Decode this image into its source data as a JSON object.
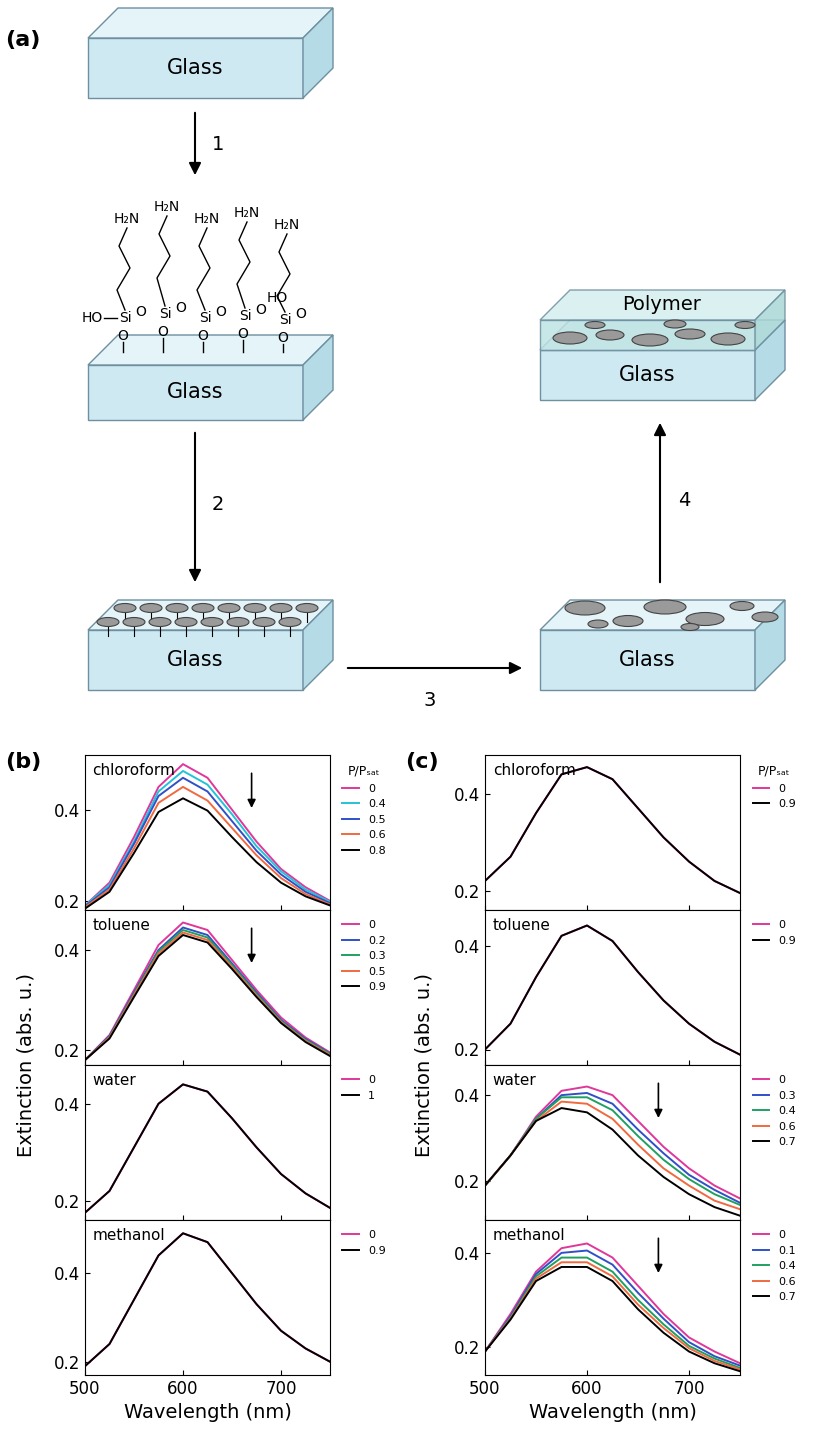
{
  "diagram": {
    "panel_label": "(a)",
    "substrate": "Glass",
    "coating": "Polymer",
    "steps": [
      "1",
      "2",
      "3",
      "4"
    ],
    "molecule": {
      "amines": [
        "H₂N",
        "H₂N",
        "H₂N",
        "H₂N",
        "H₂N"
      ],
      "silicons": [
        "Si",
        "Si",
        "Si",
        "Si",
        "Si"
      ],
      "oxygens": [
        "O",
        "O",
        "O",
        "O",
        "O",
        "O",
        "O",
        "O",
        "O",
        "O"
      ],
      "hydroxyls": [
        "HO",
        "HO"
      ]
    }
  },
  "chart_data": [
    {
      "type": "line",
      "title": "chloroform",
      "panel_label": "(b)",
      "legend_title": "P/Pₛₐₜ",
      "legend": "right",
      "tick_labels": "y",
      "x": [
        500,
        525,
        550,
        575,
        600,
        625,
        650,
        675,
        700,
        725,
        750
      ],
      "xlim": [
        500,
        750
      ],
      "xticks": [
        500,
        600,
        700
      ],
      "ylim": [
        0.18,
        0.52
      ],
      "yticks": [
        0.2,
        0.4
      ],
      "series": [
        {
          "name": "0",
          "color": "#e0379a",
          "values": [
            0.19,
            0.24,
            0.34,
            0.45,
            0.5,
            0.47,
            0.4,
            0.33,
            0.27,
            0.23,
            0.2
          ]
        },
        {
          "name": "0.4",
          "color": "#22c3d6",
          "values": [
            0.19,
            0.235,
            0.33,
            0.44,
            0.485,
            0.455,
            0.39,
            0.32,
            0.265,
            0.225,
            0.198
          ]
        },
        {
          "name": "0.5",
          "color": "#3050c8",
          "values": [
            0.188,
            0.23,
            0.325,
            0.43,
            0.47,
            0.44,
            0.375,
            0.31,
            0.258,
            0.22,
            0.195
          ]
        },
        {
          "name": "0.6",
          "color": "#f06a40",
          "values": [
            0.186,
            0.225,
            0.315,
            0.415,
            0.45,
            0.42,
            0.36,
            0.3,
            0.25,
            0.215,
            0.192
          ]
        },
        {
          "name": "0.8",
          "color": "#000000",
          "values": [
            0.183,
            0.22,
            0.305,
            0.395,
            0.425,
            0.398,
            0.34,
            0.285,
            0.24,
            0.21,
            0.19
          ]
        }
      ]
    },
    {
      "type": "line",
      "title": "toluene",
      "legend": "right",
      "tick_labels": "y",
      "x": [
        500,
        525,
        550,
        575,
        600,
        625,
        650,
        675,
        700,
        725,
        750
      ],
      "xlim": [
        500,
        750
      ],
      "xticks": [
        500,
        600,
        700
      ],
      "ylim": [
        0.17,
        0.48
      ],
      "yticks": [
        0.2,
        0.4
      ],
      "series": [
        {
          "name": "0",
          "color": "#e0379a",
          "values": [
            0.18,
            0.23,
            0.32,
            0.41,
            0.455,
            0.44,
            0.38,
            0.32,
            0.265,
            0.225,
            0.195
          ]
        },
        {
          "name": "0.2",
          "color": "#3050c8",
          "values": [
            0.18,
            0.228,
            0.315,
            0.4,
            0.445,
            0.43,
            0.373,
            0.315,
            0.26,
            0.222,
            0.193
          ]
        },
        {
          "name": "0.3",
          "color": "#20a060",
          "values": [
            0.18,
            0.226,
            0.312,
            0.397,
            0.44,
            0.425,
            0.37,
            0.312,
            0.258,
            0.22,
            0.192
          ]
        },
        {
          "name": "0.5",
          "color": "#f06a40",
          "values": [
            0.18,
            0.225,
            0.31,
            0.393,
            0.435,
            0.42,
            0.366,
            0.309,
            0.256,
            0.218,
            0.19
          ]
        },
        {
          "name": "0.9",
          "color": "#000000",
          "values": [
            0.18,
            0.223,
            0.306,
            0.388,
            0.43,
            0.415,
            0.362,
            0.306,
            0.254,
            0.216,
            0.188
          ]
        }
      ]
    },
    {
      "type": "line",
      "title": "water",
      "ylabel": "Extinction (abs. u.)",
      "legend": "right",
      "tick_labels": "y",
      "x": [
        500,
        525,
        550,
        575,
        600,
        625,
        650,
        675,
        700,
        725,
        750
      ],
      "xlim": [
        500,
        750
      ],
      "xticks": [
        500,
        600,
        700
      ],
      "ylim": [
        0.16,
        0.48
      ],
      "yticks": [
        0.2,
        0.4
      ],
      "series": [
        {
          "name": "0",
          "color": "#e0379a",
          "values": [
            0.175,
            0.22,
            0.31,
            0.4,
            0.44,
            0.425,
            0.37,
            0.31,
            0.255,
            0.215,
            0.185
          ]
        },
        {
          "name": "1",
          "color": "#000000",
          "values": [
            0.175,
            0.22,
            0.31,
            0.4,
            0.44,
            0.425,
            0.37,
            0.31,
            0.255,
            0.215,
            0.185
          ]
        }
      ]
    },
    {
      "type": "line",
      "title": "methanol",
      "xlabel": "Wavelength (nm)",
      "legend": "right",
      "x": [
        500,
        525,
        550,
        575,
        600,
        625,
        650,
        675,
        700,
        725,
        750
      ],
      "xlim": [
        500,
        750
      ],
      "xticks": [
        500,
        600,
        700
      ],
      "ylim": [
        0.17,
        0.52
      ],
      "yticks": [
        0.2,
        0.4
      ],
      "series": [
        {
          "name": "0",
          "color": "#e0379a",
          "values": [
            0.19,
            0.24,
            0.34,
            0.44,
            0.49,
            0.47,
            0.4,
            0.33,
            0.27,
            0.23,
            0.2
          ]
        },
        {
          "name": "0.9",
          "color": "#000000",
          "values": [
            0.19,
            0.24,
            0.34,
            0.44,
            0.49,
            0.47,
            0.4,
            0.33,
            0.27,
            0.23,
            0.2
          ]
        }
      ]
    },
    {
      "type": "line",
      "title": "chloroform",
      "panel_label": "(c)",
      "legend_title": "P/Pₛₐₜ",
      "legend": "right",
      "tick_labels": "y",
      "x": [
        500,
        525,
        550,
        575,
        600,
        625,
        650,
        675,
        700,
        725,
        750
      ],
      "xlim": [
        500,
        750
      ],
      "xticks": [
        500,
        600,
        700
      ],
      "ylim": [
        0.16,
        0.48
      ],
      "yticks": [
        0.2,
        0.4
      ],
      "series": [
        {
          "name": "0",
          "color": "#e0379a",
          "values": [
            0.22,
            0.27,
            0.36,
            0.44,
            0.455,
            0.43,
            0.37,
            0.31,
            0.26,
            0.22,
            0.195
          ]
        },
        {
          "name": "0.9",
          "color": "#000000",
          "values": [
            0.22,
            0.27,
            0.36,
            0.44,
            0.455,
            0.43,
            0.37,
            0.31,
            0.26,
            0.22,
            0.195
          ]
        }
      ]
    },
    {
      "type": "line",
      "title": "toluene",
      "legend": "right",
      "tick_labels": "y",
      "x": [
        500,
        525,
        550,
        575,
        600,
        625,
        650,
        675,
        700,
        725,
        750
      ],
      "xlim": [
        500,
        750
      ],
      "xticks": [
        500,
        600,
        700
      ],
      "ylim": [
        0.17,
        0.47
      ],
      "yticks": [
        0.2,
        0.4
      ],
      "series": [
        {
          "name": "0",
          "color": "#e0379a",
          "values": [
            0.2,
            0.25,
            0.34,
            0.42,
            0.44,
            0.41,
            0.35,
            0.295,
            0.25,
            0.215,
            0.19
          ]
        },
        {
          "name": "0.9",
          "color": "#000000",
          "values": [
            0.2,
            0.25,
            0.34,
            0.42,
            0.44,
            0.41,
            0.35,
            0.295,
            0.25,
            0.215,
            0.19
          ]
        }
      ]
    },
    {
      "type": "line",
      "title": "water",
      "ylabel": "Extinction (abs. u.)",
      "legend": "right",
      "tick_labels": "y",
      "x": [
        500,
        525,
        550,
        575,
        600,
        625,
        650,
        675,
        700,
        725,
        750
      ],
      "xlim": [
        500,
        750
      ],
      "xticks": [
        500,
        600,
        700
      ],
      "ylim": [
        0.11,
        0.47
      ],
      "yticks": [
        0.2,
        0.4
      ],
      "series": [
        {
          "name": "0",
          "color": "#e0379a",
          "values": [
            0.19,
            0.26,
            0.35,
            0.41,
            0.42,
            0.4,
            0.34,
            0.28,
            0.23,
            0.19,
            0.16
          ]
        },
        {
          "name": "0.3",
          "color": "#3050c8",
          "values": [
            0.19,
            0.26,
            0.345,
            0.4,
            0.405,
            0.38,
            0.32,
            0.265,
            0.215,
            0.18,
            0.15
          ]
        },
        {
          "name": "0.4",
          "color": "#20a060",
          "values": [
            0.19,
            0.26,
            0.345,
            0.395,
            0.395,
            0.365,
            0.305,
            0.25,
            0.205,
            0.17,
            0.145
          ]
        },
        {
          "name": "0.6",
          "color": "#f06a40",
          "values": [
            0.19,
            0.26,
            0.34,
            0.385,
            0.38,
            0.345,
            0.285,
            0.23,
            0.19,
            0.155,
            0.135
          ]
        },
        {
          "name": "0.7",
          "color": "#000000",
          "values": [
            0.19,
            0.26,
            0.34,
            0.37,
            0.36,
            0.32,
            0.26,
            0.21,
            0.17,
            0.14,
            0.12
          ]
        }
      ]
    },
    {
      "type": "line",
      "title": "methanol",
      "xlabel": "Wavelength (nm)",
      "legend": "right",
      "x": [
        500,
        525,
        550,
        575,
        600,
        625,
        650,
        675,
        700,
        725,
        750
      ],
      "xlim": [
        500,
        750
      ],
      "xticks": [
        500,
        600,
        700
      ],
      "ylim": [
        0.14,
        0.47
      ],
      "yticks": [
        0.2,
        0.4
      ],
      "series": [
        {
          "name": "0",
          "color": "#e0379a",
          "values": [
            0.19,
            0.27,
            0.36,
            0.41,
            0.42,
            0.39,
            0.33,
            0.27,
            0.22,
            0.19,
            0.165
          ]
        },
        {
          "name": "0.1",
          "color": "#3050c8",
          "values": [
            0.19,
            0.265,
            0.355,
            0.4,
            0.405,
            0.375,
            0.315,
            0.26,
            0.21,
            0.18,
            0.16
          ]
        },
        {
          "name": "0.4",
          "color": "#20a060",
          "values": [
            0.19,
            0.262,
            0.35,
            0.39,
            0.39,
            0.36,
            0.3,
            0.248,
            0.202,
            0.175,
            0.155
          ]
        },
        {
          "name": "0.6",
          "color": "#f06a40",
          "values": [
            0.19,
            0.26,
            0.345,
            0.38,
            0.38,
            0.35,
            0.29,
            0.24,
            0.197,
            0.17,
            0.152
          ]
        },
        {
          "name": "0.7",
          "color": "#000000",
          "values": [
            0.19,
            0.258,
            0.34,
            0.37,
            0.37,
            0.34,
            0.28,
            0.23,
            0.19,
            0.165,
            0.148
          ]
        }
      ]
    }
  ]
}
